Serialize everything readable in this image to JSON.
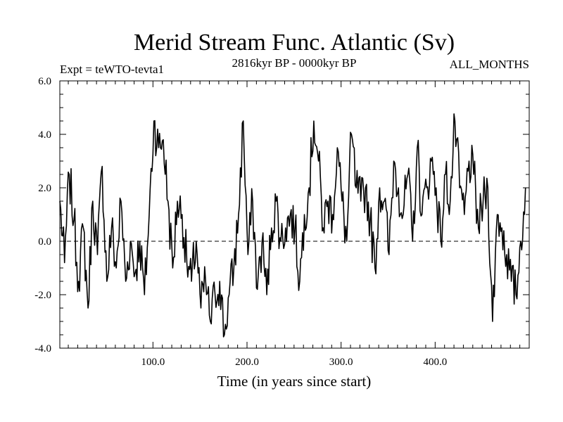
{
  "chart_data": {
    "type": "line",
    "title": "Merid Stream Func. Atlantic (Sv)",
    "subtitle_left": "Expt = teWTO-tevta1",
    "subtitle_center": "2816kyr BP - 0000kyr BP",
    "subtitle_right": "ALL_MONTHS",
    "xlabel": "Time (in years since start)",
    "ylabel": "",
    "xlim": [
      1,
      500
    ],
    "ylim": [
      -4.0,
      6.0
    ],
    "x_ticks": [
      100,
      200,
      300,
      400
    ],
    "x_tick_labels": [
      "100.0",
      "200.0",
      "300.0",
      "400.0"
    ],
    "y_ticks": [
      -4,
      -2,
      0,
      2,
      4,
      6
    ],
    "y_tick_labels": [
      "-4.0",
      "-2.0",
      "0.0",
      "2.0",
      "4.0",
      "6.0"
    ],
    "reference_line": 0.0,
    "grid": false,
    "series": [
      {
        "name": "Merid Stream Func. Atlantic",
        "x_start": 1,
        "x_step": 5,
        "values": [
          1.5,
          -0.8,
          2.5,
          0.8,
          -1.5,
          0.5,
          -2.5,
          1.5,
          -0.5,
          2.8,
          -1.5,
          0.5,
          -1.0,
          1.5,
          -1.5,
          0.0,
          -1.2,
          0.0,
          -2.0,
          1.0,
          4.5,
          3.5,
          3.8,
          1.5,
          -1.0,
          1.5,
          1.0,
          -0.8,
          -1.5,
          0.0,
          -2.5,
          -1.5,
          -3.0,
          -2.0,
          -1.5,
          -3.5,
          -2.0,
          -1.0,
          1.0,
          4.5,
          -0.5,
          1.5,
          -1.8,
          0.0,
          -2.0,
          0.5,
          1.5,
          0.0,
          0.5,
          1.0,
          0.5,
          -1.5,
          1.0,
          2.0,
          4.5,
          3.0,
          0.5,
          1.5,
          1.0,
          3.5,
          1.5,
          0.0,
          4.0,
          2.0,
          1.5,
          2.0,
          0.8,
          -1.0,
          2.0,
          1.5,
          -0.5,
          3.0,
          2.0,
          1.0,
          2.5,
          0.0,
          3.5,
          1.0,
          2.0,
          3.0,
          2.0,
          0.0,
          2.5,
          1.5,
          4.5,
          2.0,
          1.0,
          3.0,
          2.5,
          0.5,
          1.5,
          2.0,
          -3.0,
          1.0,
          0.5,
          -0.5,
          -1.5,
          -2.0,
          0.0,
          2.0
        ]
      }
    ]
  }
}
